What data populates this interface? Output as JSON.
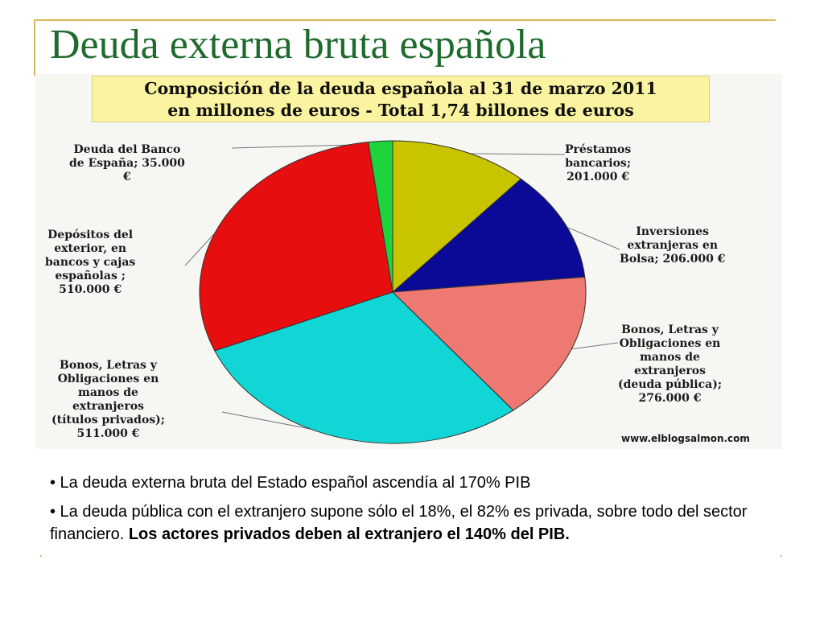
{
  "slide": {
    "title": "Deuda externa bruta española",
    "bullets": [
      {
        "text": "• La deuda externa bruta del Estado español ascendía al 170% PIB",
        "bold": ""
      },
      {
        "text": "• La deuda pública con el extranjero supone sólo el 18%, el 82% es privada, sobre todo del sector financiero. ",
        "bold": "Los actores privados deben al extranjero el 140% del PIB."
      }
    ]
  },
  "chart_data": {
    "type": "pie",
    "title_line1": "Composición de la deuda española al 31 de marzo 2011",
    "title_line2": "en millones de euros - Total 1,74 billones de euros",
    "source": "www.elblogsalmon.com",
    "slices": [
      {
        "label": "Préstamos\nbancarios;\n201.000 €",
        "value": 201000,
        "color": "#c8c400"
      },
      {
        "label": "Inversiones\nextranjeras en\nBolsa; 206.000 €",
        "value": 206000,
        "color": "#0a0a96"
      },
      {
        "label": "Bonos, Letras y\nObligaciones en\nmanos de\nextranjeros\n(deuda pública);\n276.000 €",
        "value": 276000,
        "color": "#ee7872"
      },
      {
        "label": "Bonos, Letras y\nObligaciones en\nmanos de\nextranjeros\n(títulos privados);\n511.000 €",
        "value": 511000,
        "color": "#12d6d6"
      },
      {
        "label": "Depósitos del\nexterior, en\nbancos y cajas\nespañolas ;\n510.000 €",
        "value": 510000,
        "color": "#e60e0e"
      },
      {
        "label": "Deuda del Banco\nde España; 35.000\n€",
        "value": 35000,
        "color": "#1ed43c"
      }
    ]
  }
}
